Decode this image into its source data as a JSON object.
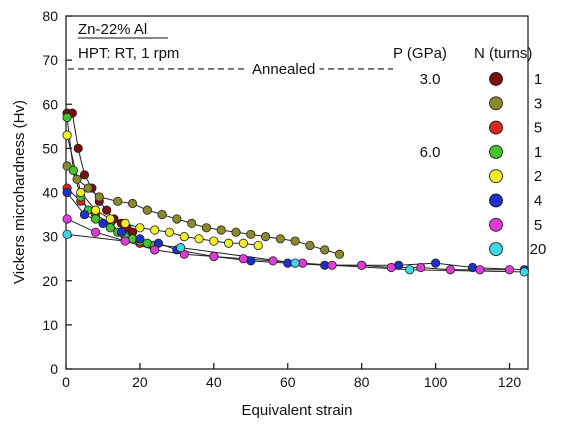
{
  "chart_data": {
    "type": "scatter",
    "xlabel": "Equivalent strain",
    "ylabel": "Vickers microhardness (Hv)",
    "xlim": [
      0,
      125
    ],
    "ylim": [
      0,
      80
    ],
    "xticks": [
      0,
      20,
      40,
      60,
      80,
      100,
      120
    ],
    "yticks": [
      0,
      10,
      20,
      30,
      40,
      50,
      60,
      70,
      80
    ],
    "grid": false,
    "annotations": {
      "material": "Zn-22% Al",
      "process": "HPT: RT, 1 rpm",
      "annealed_label": "Annealed",
      "annealed_value": 68
    },
    "legend": {
      "placement": "top-right",
      "pressure_header": "P (GPa)",
      "turns_header": "N (turns)"
    },
    "series": [
      {
        "pressure": "3.0",
        "turns": "1",
        "color": "#7a0f12",
        "x": [
          0.3,
          1.7,
          3.3,
          5,
          7,
          9,
          11,
          13,
          15,
          16.5,
          18
        ],
        "y": [
          58,
          58,
          50,
          44,
          41,
          38,
          36,
          34,
          33,
          32,
          31
        ]
      },
      {
        "pressure": "",
        "turns": "3",
        "color": "#8a8a2a",
        "x": [
          0.3,
          3,
          6,
          9,
          14,
          18,
          22,
          26,
          30,
          34,
          38,
          42,
          46,
          50,
          54,
          58,
          62,
          66,
          70,
          74
        ],
        "y": [
          46,
          43,
          41,
          39,
          38,
          37.5,
          36,
          35,
          34,
          33,
          32,
          31.5,
          31,
          30.5,
          30,
          29.5,
          29,
          28,
          27,
          26
        ]
      },
      {
        "pressure": "",
        "turns": "5",
        "color": "#d8251e",
        "x": [
          0.3,
          4,
          8,
          12,
          16,
          20,
          24
        ],
        "y": [
          41,
          38,
          35,
          33,
          30,
          28.5,
          27
        ]
      },
      {
        "pressure": "6.0",
        "turns": "1",
        "color": "#42c42a",
        "x": [
          0.3,
          2,
          4,
          6,
          8,
          10,
          12,
          14,
          16,
          18,
          20,
          22,
          24
        ],
        "y": [
          57,
          45,
          39,
          36,
          34,
          33,
          32,
          31,
          30,
          29.5,
          29,
          28.5,
          28
        ]
      },
      {
        "pressure": "",
        "turns": "2",
        "color": "#f2ee2a",
        "x": [
          0.3,
          4,
          8,
          12,
          16,
          20,
          24,
          28,
          32,
          36,
          40,
          44,
          48,
          52
        ],
        "y": [
          53,
          40,
          36,
          34,
          33,
          32,
          31.5,
          31,
          30,
          29.5,
          29,
          28.5,
          28.5,
          28
        ]
      },
      {
        "pressure": "",
        "turns": "4",
        "color": "#1c2fc8",
        "x": [
          0.3,
          5,
          10,
          15,
          20,
          25,
          30,
          40,
          50,
          60,
          70,
          80,
          90,
          100,
          110,
          124
        ],
        "y": [
          40,
          35,
          33,
          31,
          29.5,
          28.5,
          27,
          25.5,
          24.5,
          24,
          23.5,
          23.5,
          23.5,
          24,
          23,
          22.5
        ]
      },
      {
        "pressure": "",
        "turns": "5",
        "color": "#e23ad8",
        "x": [
          0.3,
          8,
          16,
          24,
          32,
          40,
          48,
          56,
          64,
          72,
          80,
          88,
          96,
          104,
          112,
          120
        ],
        "y": [
          34,
          31,
          29,
          27,
          26,
          25.5,
          25,
          24.5,
          24,
          23.5,
          23.5,
          23,
          23,
          22.5,
          22.5,
          22.5
        ]
      },
      {
        "pressure": "",
        "turns": "20",
        "color": "#3cd7e2",
        "x": [
          0.3,
          31,
          62,
          93,
          124
        ],
        "y": [
          30.5,
          27.5,
          24,
          22.5,
          22
        ]
      }
    ]
  }
}
